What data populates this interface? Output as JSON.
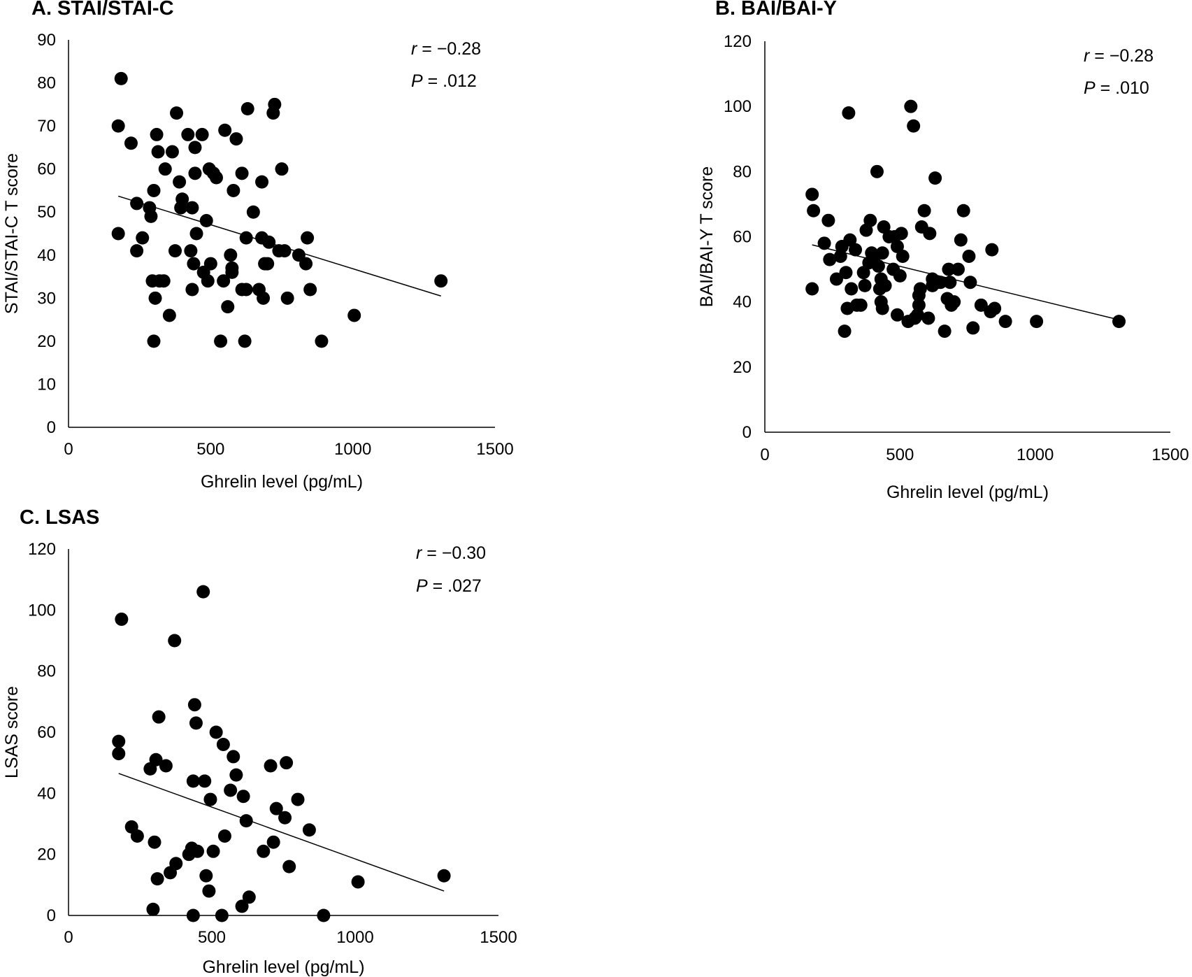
{
  "chart_data": [
    {
      "id": "A",
      "type": "scatter",
      "title": "A. STAI/STAI-C",
      "xlabel": "Ghrelin level (pg/mL)",
      "ylabel": "STAI/STAI-C T score",
      "xlim": [
        0,
        1500
      ],
      "ylim": [
        0,
        90
      ],
      "xticks": [
        0,
        500,
        1000,
        1500
      ],
      "yticks": [
        0,
        10,
        20,
        30,
        40,
        50,
        60,
        70,
        80,
        90
      ],
      "stats": {
        "r_symbol": "r",
        "r_value": " = −0.28",
        "p_symbol": "P",
        "p_value": " = .012"
      },
      "trendline": {
        "x": [
          175,
          1310
        ],
        "y": [
          53.7,
          30.5
        ]
      },
      "points": [
        [
          185,
          81
        ],
        [
          175,
          70
        ],
        [
          220,
          66
        ],
        [
          175,
          45
        ],
        [
          240,
          52
        ],
        [
          240,
          41
        ],
        [
          260,
          44
        ],
        [
          285,
          51
        ],
        [
          290,
          49
        ],
        [
          295,
          34
        ],
        [
          300,
          55
        ],
        [
          305,
          30
        ],
        [
          300,
          20
        ],
        [
          310,
          68
        ],
        [
          315,
          64
        ],
        [
          320,
          34
        ],
        [
          335,
          34
        ],
        [
          340,
          60
        ],
        [
          355,
          26
        ],
        [
          365,
          64
        ],
        [
          375,
          41
        ],
        [
          380,
          73
        ],
        [
          390,
          57
        ],
        [
          395,
          51
        ],
        [
          400,
          53
        ],
        [
          420,
          68
        ],
        [
          430,
          41
        ],
        [
          435,
          51
        ],
        [
          435,
          32
        ],
        [
          440,
          38
        ],
        [
          445,
          65
        ],
        [
          445,
          59
        ],
        [
          450,
          45
        ],
        [
          470,
          68
        ],
        [
          475,
          36
        ],
        [
          485,
          48
        ],
        [
          490,
          34
        ],
        [
          495,
          60
        ],
        [
          500,
          38
        ],
        [
          510,
          59
        ],
        [
          520,
          58
        ],
        [
          535,
          20
        ],
        [
          545,
          34
        ],
        [
          550,
          69
        ],
        [
          560,
          28
        ],
        [
          570,
          40
        ],
        [
          575,
          36
        ],
        [
          575,
          37
        ],
        [
          580,
          55
        ],
        [
          590,
          67
        ],
        [
          610,
          32
        ],
        [
          610,
          59
        ],
        [
          620,
          20
        ],
        [
          625,
          32
        ],
        [
          625,
          44
        ],
        [
          630,
          74
        ],
        [
          650,
          50
        ],
        [
          670,
          32
        ],
        [
          680,
          57
        ],
        [
          680,
          44
        ],
        [
          685,
          30
        ],
        [
          690,
          38
        ],
        [
          700,
          38
        ],
        [
          705,
          43
        ],
        [
          720,
          73
        ],
        [
          725,
          75
        ],
        [
          740,
          41
        ],
        [
          750,
          60
        ],
        [
          760,
          41
        ],
        [
          770,
          30
        ],
        [
          810,
          40
        ],
        [
          835,
          38
        ],
        [
          840,
          44
        ],
        [
          850,
          32
        ],
        [
          890,
          20
        ],
        [
          1005,
          26
        ],
        [
          1310,
          34
        ]
      ]
    },
    {
      "id": "B",
      "type": "scatter",
      "title": "B. BAI/BAI-Y",
      "xlabel": "Ghrelin level (pg/mL)",
      "ylabel": "BAI/BAI-Y T score",
      "xlim": [
        0,
        1500
      ],
      "ylim": [
        0,
        120
      ],
      "xticks": [
        0,
        500,
        1000,
        1500
      ],
      "yticks": [
        0,
        20,
        40,
        60,
        80,
        100,
        120
      ],
      "stats": {
        "r_symbol": "r",
        "r_value": " = −0.28",
        "p_symbol": "P",
        "p_value": " = .010"
      },
      "trendline": {
        "x": [
          175,
          1310
        ],
        "y": [
          57.5,
          34.5
        ]
      },
      "points": [
        [
          175,
          73
        ],
        [
          180,
          68
        ],
        [
          175,
          44
        ],
        [
          220,
          58
        ],
        [
          235,
          65
        ],
        [
          240,
          53
        ],
        [
          265,
          47
        ],
        [
          280,
          54
        ],
        [
          285,
          57
        ],
        [
          295,
          31
        ],
        [
          300,
          49
        ],
        [
          305,
          38
        ],
        [
          310,
          98
        ],
        [
          315,
          59
        ],
        [
          320,
          44
        ],
        [
          335,
          56
        ],
        [
          340,
          39
        ],
        [
          355,
          39
        ],
        [
          365,
          49
        ],
        [
          370,
          45
        ],
        [
          375,
          62
        ],
        [
          385,
          52
        ],
        [
          390,
          65
        ],
        [
          395,
          55
        ],
        [
          405,
          54
        ],
        [
          415,
          80
        ],
        [
          420,
          51
        ],
        [
          425,
          44
        ],
        [
          430,
          47
        ],
        [
          430,
          40
        ],
        [
          435,
          38
        ],
        [
          435,
          55
        ],
        [
          440,
          63
        ],
        [
          445,
          45
        ],
        [
          460,
          60
        ],
        [
          475,
          50
        ],
        [
          480,
          60
        ],
        [
          490,
          36
        ],
        [
          490,
          57
        ],
        [
          500,
          48
        ],
        [
          505,
          61
        ],
        [
          510,
          54
        ],
        [
          530,
          34
        ],
        [
          540,
          100
        ],
        [
          550,
          94
        ],
        [
          555,
          35
        ],
        [
          565,
          36
        ],
        [
          570,
          42
        ],
        [
          570,
          39
        ],
        [
          575,
          44
        ],
        [
          580,
          63
        ],
        [
          590,
          68
        ],
        [
          605,
          35
        ],
        [
          610,
          61
        ],
        [
          620,
          47
        ],
        [
          620,
          45
        ],
        [
          630,
          78
        ],
        [
          640,
          46
        ],
        [
          650,
          46
        ],
        [
          665,
          31
        ],
        [
          675,
          41
        ],
        [
          680,
          50
        ],
        [
          685,
          46
        ],
        [
          690,
          39
        ],
        [
          700,
          40
        ],
        [
          715,
          50
        ],
        [
          725,
          59
        ],
        [
          735,
          68
        ],
        [
          755,
          54
        ],
        [
          760,
          46
        ],
        [
          770,
          32
        ],
        [
          800,
          39
        ],
        [
          835,
          37
        ],
        [
          840,
          56
        ],
        [
          850,
          38
        ],
        [
          890,
          34
        ],
        [
          1005,
          34
        ],
        [
          1310,
          34
        ]
      ]
    },
    {
      "id": "C",
      "type": "scatter",
      "title": "C. LSAS",
      "xlabel": "Ghrelin level (pg/mL)",
      "ylabel": "LSAS score",
      "xlim": [
        0,
        1500
      ],
      "ylim": [
        0,
        120
      ],
      "xticks": [
        0,
        500,
        1000,
        1500
      ],
      "yticks": [
        0,
        20,
        40,
        60,
        80,
        100,
        120
      ],
      "stats": {
        "r_symbol": "r",
        "r_value": " = −0.30",
        "p_symbol": "P",
        "p_value": " = .027"
      },
      "trendline": {
        "x": [
          175,
          1310
        ],
        "y": [
          46.5,
          8
        ]
      },
      "points": [
        [
          185,
          97
        ],
        [
          175,
          57
        ],
        [
          175,
          53
        ],
        [
          220,
          29
        ],
        [
          240,
          26
        ],
        [
          285,
          48
        ],
        [
          295,
          2
        ],
        [
          300,
          24
        ],
        [
          305,
          51
        ],
        [
          310,
          12
        ],
        [
          315,
          65
        ],
        [
          340,
          49
        ],
        [
          355,
          14
        ],
        [
          370,
          90
        ],
        [
          375,
          17
        ],
        [
          420,
          20
        ],
        [
          430,
          22
        ],
        [
          435,
          44
        ],
        [
          435,
          0
        ],
        [
          440,
          69
        ],
        [
          445,
          63
        ],
        [
          450,
          21
        ],
        [
          470,
          106
        ],
        [
          475,
          44
        ],
        [
          480,
          13
        ],
        [
          490,
          8
        ],
        [
          495,
          38
        ],
        [
          505,
          21
        ],
        [
          515,
          60
        ],
        [
          535,
          0
        ],
        [
          540,
          56
        ],
        [
          545,
          26
        ],
        [
          565,
          41
        ],
        [
          575,
          52
        ],
        [
          585,
          46
        ],
        [
          605,
          3
        ],
        [
          610,
          39
        ],
        [
          620,
          31
        ],
        [
          630,
          6
        ],
        [
          680,
          21
        ],
        [
          705,
          49
        ],
        [
          715,
          24
        ],
        [
          725,
          35
        ],
        [
          755,
          32
        ],
        [
          760,
          50
        ],
        [
          770,
          16
        ],
        [
          800,
          38
        ],
        [
          840,
          28
        ],
        [
          890,
          0
        ],
        [
          1010,
          11
        ],
        [
          1310,
          13
        ]
      ]
    }
  ]
}
